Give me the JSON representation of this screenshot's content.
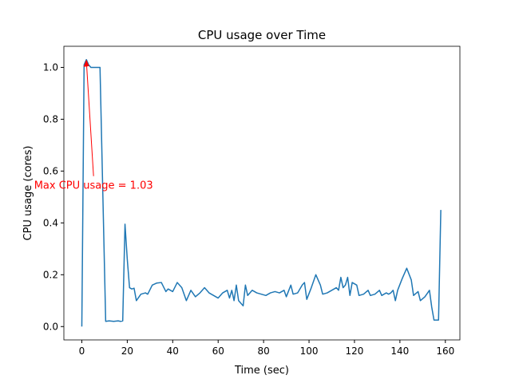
{
  "chart_data": {
    "type": "line",
    "title": "CPU usage over Time",
    "xlabel": "Time (sec)",
    "ylabel": "CPU usage (cores)",
    "x": [
      0,
      1,
      2,
      3,
      4,
      5,
      6,
      7,
      8,
      10.5,
      12,
      14,
      16,
      17,
      18,
      19,
      20,
      21,
      22,
      23,
      24,
      26,
      28,
      29,
      31,
      33,
      35,
      37,
      38,
      40,
      42,
      44,
      46,
      48,
      50,
      52,
      54,
      56,
      58,
      60,
      62,
      64,
      65,
      66,
      67,
      68,
      69,
      71,
      72,
      73,
      75,
      77,
      79,
      81,
      83,
      85,
      87,
      89,
      90,
      92,
      93,
      95,
      97,
      98,
      99,
      101,
      103,
      105,
      106,
      108,
      110,
      112,
      113,
      114,
      115,
      116,
      117,
      118,
      119,
      121,
      122,
      124,
      126,
      127,
      129,
      131,
      132,
      134,
      135,
      136,
      137,
      138,
      139,
      141,
      143,
      145,
      146,
      148,
      149,
      151,
      153,
      154,
      155,
      156,
      157,
      158
    ],
    "values": [
      0,
      1.01,
      1.03,
      1.01,
      1.0,
      1.0,
      1.0,
      1.0,
      1.0,
      0.02,
      0.022,
      0.02,
      0.022,
      0.02,
      0.022,
      0.395,
      0.26,
      0.15,
      0.145,
      0.148,
      0.1,
      0.125,
      0.13,
      0.125,
      0.16,
      0.168,
      0.17,
      0.135,
      0.145,
      0.135,
      0.17,
      0.15,
      0.1,
      0.14,
      0.115,
      0.13,
      0.15,
      0.13,
      0.12,
      0.11,
      0.13,
      0.14,
      0.11,
      0.14,
      0.1,
      0.16,
      0.1,
      0.08,
      0.16,
      0.12,
      0.14,
      0.13,
      0.125,
      0.12,
      0.13,
      0.135,
      0.13,
      0.14,
      0.115,
      0.16,
      0.125,
      0.13,
      0.16,
      0.17,
      0.105,
      0.15,
      0.2,
      0.16,
      0.125,
      0.13,
      0.14,
      0.15,
      0.14,
      0.19,
      0.15,
      0.16,
      0.19,
      0.12,
      0.17,
      0.16,
      0.12,
      0.125,
      0.14,
      0.12,
      0.125,
      0.14,
      0.12,
      0.13,
      0.125,
      0.13,
      0.14,
      0.1,
      0.14,
      0.185,
      0.225,
      0.18,
      0.12,
      0.135,
      0.1,
      0.115,
      0.14,
      0.075,
      0.025,
      0.025,
      0.025,
      0.45
    ],
    "color": "#1f77b4",
    "xlim": [
      -7.9,
      166.4
    ],
    "xticks": [
      0,
      20,
      40,
      60,
      80,
      100,
      120,
      140,
      160
    ],
    "ylim": [
      -0.0515,
      1.0815
    ],
    "yticks": [
      {
        "value": 0,
        "label": "0.0"
      },
      {
        "value": 0.2,
        "label": "0.2"
      },
      {
        "value": 0.4,
        "label": "0.4"
      },
      {
        "value": 0.6,
        "label": "0.6"
      },
      {
        "value": 0.8,
        "label": "0.8"
      },
      {
        "value": 1,
        "label": "1.0"
      }
    ],
    "annotations": [
      {
        "text": "Max CPU usage = 1.03",
        "x": 2,
        "y": 1.03,
        "color": "red"
      }
    ]
  }
}
